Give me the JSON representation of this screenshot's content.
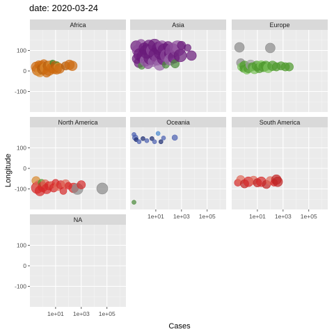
{
  "chart_data": {
    "type": "scatter",
    "title": "date: 2020-03-24",
    "xlabel": "Cases",
    "ylabel": "Longitude",
    "x_scale": "log10",
    "xlim": [
      0.1,
      3000000
    ],
    "ylim": [
      -200,
      200
    ],
    "x_ticks": [
      10,
      1000,
      100000
    ],
    "x_tick_labels": [
      "1e+01",
      "1e+03",
      "1e+05"
    ],
    "y_ticks": [
      100,
      0,
      -100
    ],
    "y_tick_labels": [
      "100",
      "0",
      "-100"
    ],
    "grid": true,
    "legend": "none",
    "colors": {
      "panel_bg": "#ebebeb",
      "strip_bg": "#d9d9d9",
      "grid_major": "#ffffff",
      "africa_orange": "#cc6a10",
      "africa_green": "#3a8a2a",
      "asia_purple": "#6a1b7a",
      "asia_green": "#4a8a3a",
      "europe_green": "#4e9a2e",
      "europe_gray": "#8a8a8a",
      "na_red": "#d62a2a",
      "na_gray": "#8a8a8a",
      "oceania_blue": "#4a5fb0",
      "sa_red": "#c02525"
    },
    "panels": [
      {
        "name": "Africa",
        "points": [
          {
            "x": 0.3,
            "y": 20,
            "size": 7,
            "color": "#cc6a10"
          },
          {
            "x": 0.4,
            "y": 5,
            "size": 8,
            "color": "#cc6a10"
          },
          {
            "x": 0.5,
            "y": 30,
            "size": 6,
            "color": "#cc6a10"
          },
          {
            "x": 0.6,
            "y": -5,
            "size": 7,
            "color": "#d98a30"
          },
          {
            "x": 0.8,
            "y": 25,
            "size": 7,
            "color": "#cc6a10"
          },
          {
            "x": 1,
            "y": 10,
            "size": 8,
            "color": "#b85e0c"
          },
          {
            "x": 1.2,
            "y": 35,
            "size": 6,
            "color": "#cc6a10"
          },
          {
            "x": 1.5,
            "y": 15,
            "size": 7,
            "color": "#d98a30"
          },
          {
            "x": 2,
            "y": -10,
            "size": 6,
            "color": "#cc6a10"
          },
          {
            "x": 2.5,
            "y": 25,
            "size": 7,
            "color": "#b85e0c"
          },
          {
            "x": 3,
            "y": 5,
            "size": 8,
            "color": "#cc6a10"
          },
          {
            "x": 4,
            "y": 30,
            "size": 6,
            "color": "#d98a30"
          },
          {
            "x": 5,
            "y": 15,
            "size": 7,
            "color": "#cc6a10"
          },
          {
            "x": 6,
            "y": 40,
            "size": 4,
            "color": "#3a8a2a"
          },
          {
            "x": 7,
            "y": 10,
            "size": 7,
            "color": "#cc6a10"
          },
          {
            "x": 9,
            "y": 28,
            "size": 6,
            "color": "#b85e0c"
          },
          {
            "x": 12,
            "y": 8,
            "size": 7,
            "color": "#cc6a10"
          },
          {
            "x": 14,
            "y": 35,
            "size": 3,
            "color": "#3a8a2a"
          },
          {
            "x": 16,
            "y": 20,
            "size": 6,
            "color": "#d98a30"
          },
          {
            "x": 20,
            "y": 12,
            "size": 7,
            "color": "#cc6a10"
          },
          {
            "x": 60,
            "y": 25,
            "size": 6,
            "color": "#b85e0c"
          },
          {
            "x": 120,
            "y": 30,
            "size": 7,
            "color": "#cc6a10"
          },
          {
            "x": 200,
            "y": 25,
            "size": 7,
            "color": "#cc6a10"
          }
        ]
      },
      {
        "name": "Asia",
        "points": [
          {
            "x": 0.3,
            "y": 120,
            "size": 8,
            "color": "#6a1b7a"
          },
          {
            "x": 0.35,
            "y": 60,
            "size": 7,
            "color": "#6a1b7a"
          },
          {
            "x": 0.4,
            "y": 100,
            "size": 8,
            "color": "#8b4a9a"
          },
          {
            "x": 0.5,
            "y": 40,
            "size": 7,
            "color": "#6a1b7a"
          },
          {
            "x": 0.6,
            "y": 80,
            "size": 9,
            "color": "#6a1b7a"
          },
          {
            "x": 0.7,
            "y": 130,
            "size": 7,
            "color": "#8b4a9a"
          },
          {
            "x": 0.8,
            "y": 25,
            "size": 5,
            "color": "#4a8a3a"
          },
          {
            "x": 1,
            "y": 70,
            "size": 9,
            "color": "#6a1b7a"
          },
          {
            "x": 1.3,
            "y": 110,
            "size": 8,
            "color": "#6a1b7a"
          },
          {
            "x": 1.6,
            "y": 50,
            "size": 8,
            "color": "#9b6aab"
          },
          {
            "x": 2,
            "y": 95,
            "size": 10,
            "color": "#6a1b7a"
          },
          {
            "x": 2.5,
            "y": 35,
            "size": 7,
            "color": "#8b4a9a"
          },
          {
            "x": 3,
            "y": 120,
            "size": 9,
            "color": "#6a1b7a"
          },
          {
            "x": 4,
            "y": 65,
            "size": 10,
            "color": "#6a1b7a"
          },
          {
            "x": 5,
            "y": 100,
            "size": 8,
            "color": "#8b4a9a"
          },
          {
            "x": 6,
            "y": 45,
            "size": 7,
            "color": "#9b6aab"
          },
          {
            "x": 8,
            "y": 125,
            "size": 9,
            "color": "#6a1b7a"
          },
          {
            "x": 10,
            "y": 80,
            "size": 10,
            "color": "#6a1b7a"
          },
          {
            "x": 13,
            "y": 55,
            "size": 8,
            "color": "#8b4a9a"
          },
          {
            "x": 16,
            "y": 110,
            "size": 9,
            "color": "#6a1b7a"
          },
          {
            "x": 20,
            "y": 30,
            "size": 8,
            "color": "#9b6aab"
          },
          {
            "x": 25,
            "y": 90,
            "size": 10,
            "color": "#6a1b7a"
          },
          {
            "x": 30,
            "y": 120,
            "size": 8,
            "color": "#8b4a9a"
          },
          {
            "x": 40,
            "y": 60,
            "size": 9,
            "color": "#6a1b7a"
          },
          {
            "x": 50,
            "y": 100,
            "size": 10,
            "color": "#6a1b7a"
          },
          {
            "x": 60,
            "y": 30,
            "size": 5,
            "color": "#4a8a3a"
          },
          {
            "x": 70,
            "y": 75,
            "size": 9,
            "color": "#8b4a9a"
          },
          {
            "x": 90,
            "y": 120,
            "size": 7,
            "color": "#6a1b7a"
          },
          {
            "x": 110,
            "y": 85,
            "size": 7,
            "color": "#6a1b7a"
          },
          {
            "x": 130,
            "y": 55,
            "size": 8,
            "color": "#9b6aab"
          },
          {
            "x": 200,
            "y": 100,
            "size": 10,
            "color": "#8b4a9a"
          },
          {
            "x": 250,
            "y": 65,
            "size": 8,
            "color": "#6a1b7a"
          },
          {
            "x": 320,
            "y": 35,
            "size": 6,
            "color": "#4a8a3a"
          },
          {
            "x": 500,
            "y": 110,
            "size": 11,
            "color": "#8b4a9a"
          },
          {
            "x": 800,
            "y": 75,
            "size": 9,
            "color": "#6a1b7a"
          },
          {
            "x": 1000,
            "y": 125,
            "size": 6,
            "color": "#6a1b7a"
          },
          {
            "x": 3000,
            "y": 113,
            "size": 5,
            "color": "#6a1b7a"
          },
          {
            "x": 6000,
            "y": 75,
            "size": 7,
            "color": "#6a1b7a"
          }
        ]
      },
      {
        "name": "Europe",
        "points": [
          {
            "x": 0.4,
            "y": 115,
            "size": 7,
            "color": "#8a8a8a"
          },
          {
            "x": 0.5,
            "y": 40,
            "size": 6,
            "color": "#8a8a8a"
          },
          {
            "x": 0.6,
            "y": 20,
            "size": 6,
            "color": "#7ac25a"
          },
          {
            "x": 0.8,
            "y": 10,
            "size": 5,
            "color": "#4e9a2e"
          },
          {
            "x": 1,
            "y": 25,
            "size": 7,
            "color": "#4e9a2e"
          },
          {
            "x": 1.5,
            "y": 5,
            "size": 6,
            "color": "#7ac25a"
          },
          {
            "x": 2,
            "y": 15,
            "size": 7,
            "color": "#4e9a2e"
          },
          {
            "x": 3,
            "y": 30,
            "size": 7,
            "color": "#a0a0a0"
          },
          {
            "x": 4,
            "y": 20,
            "size": 6,
            "color": "#4e9a2e"
          },
          {
            "x": 6,
            "y": 10,
            "size": 7,
            "color": "#7ac25a"
          },
          {
            "x": 9,
            "y": 25,
            "size": 7,
            "color": "#4e9a2e"
          },
          {
            "x": 14,
            "y": 15,
            "size": 7,
            "color": "#4e9a2e"
          },
          {
            "x": 20,
            "y": 30,
            "size": 6,
            "color": "#7ac25a"
          },
          {
            "x": 30,
            "y": 20,
            "size": 7,
            "color": "#4e9a2e"
          },
          {
            "x": 45,
            "y": 25,
            "size": 7,
            "color": "#4e9a2e"
          },
          {
            "x": 70,
            "y": 15,
            "size": 7,
            "color": "#7ac25a"
          },
          {
            "x": 100,
            "y": 112,
            "size": 7,
            "color": "#8a8a8a"
          },
          {
            "x": 150,
            "y": 25,
            "size": 7,
            "color": "#4e9a2e"
          },
          {
            "x": 300,
            "y": 20,
            "size": 6,
            "color": "#4e9a2e"
          },
          {
            "x": 700,
            "y": 25,
            "size": 6,
            "color": "#4e9a2e"
          },
          {
            "x": 1500,
            "y": 20,
            "size": 6,
            "color": "#4e9a2e"
          },
          {
            "x": 3000,
            "y": 20,
            "size": 6,
            "color": "#4e9a2e"
          }
        ]
      },
      {
        "name": "North America",
        "points": [
          {
            "x": 0.3,
            "y": -60,
            "size": 6,
            "color": "#d98a30"
          },
          {
            "x": 0.35,
            "y": -95,
            "size": 8,
            "color": "#d62a2a"
          },
          {
            "x": 0.45,
            "y": -80,
            "size": 6,
            "color": "#e06a5a"
          },
          {
            "x": 0.6,
            "y": -110,
            "size": 7,
            "color": "#d62a2a"
          },
          {
            "x": 0.8,
            "y": -70,
            "size": 5,
            "color": "#4e9a2e"
          },
          {
            "x": 1,
            "y": -90,
            "size": 7,
            "color": "#d62a2a"
          },
          {
            "x": 1.5,
            "y": -75,
            "size": 6,
            "color": "#e06a5a"
          },
          {
            "x": 2,
            "y": -100,
            "size": 7,
            "color": "#d62a2a"
          },
          {
            "x": 3,
            "y": -85,
            "size": 6,
            "color": "#d62a2a"
          },
          {
            "x": 5,
            "y": -80,
            "size": 5,
            "color": "#e06a5a"
          },
          {
            "x": 7,
            "y": -95,
            "size": 6,
            "color": "#d62a2a"
          },
          {
            "x": 10,
            "y": -70,
            "size": 5,
            "color": "#d62a2a"
          },
          {
            "x": 15,
            "y": -88,
            "size": 6,
            "color": "#e06a5a"
          },
          {
            "x": 25,
            "y": -80,
            "size": 6,
            "color": "#d62a2a"
          },
          {
            "x": 40,
            "y": -110,
            "size": 5,
            "color": "#d62a2a"
          },
          {
            "x": 60,
            "y": -75,
            "size": 6,
            "color": "#e06a5a"
          },
          {
            "x": 100,
            "y": -85,
            "size": 5,
            "color": "#d62a2a"
          },
          {
            "x": 250,
            "y": -95,
            "size": 7,
            "color": "#d62a2a"
          },
          {
            "x": 500,
            "y": -100,
            "size": 8,
            "color": "#8a8a8a"
          },
          {
            "x": 1000,
            "y": -80,
            "size": 6,
            "color": "#d62a2a"
          },
          {
            "x": 43000,
            "y": -98,
            "size": 8,
            "color": "#8a8a8a"
          }
        ]
      },
      {
        "name": "Oceania",
        "points": [
          {
            "x": 0.2,
            "y": 165,
            "size": 3,
            "color": "#4a5fb0"
          },
          {
            "x": 0.25,
            "y": 150,
            "size": 4,
            "color": "#4a5fb0"
          },
          {
            "x": 0.3,
            "y": 140,
            "size": 3,
            "color": "#1a2a70"
          },
          {
            "x": 0.5,
            "y": 130,
            "size": 3,
            "color": "#4a5fb0"
          },
          {
            "x": 1,
            "y": 145,
            "size": 3,
            "color": "#1a2a70"
          },
          {
            "x": 2,
            "y": 135,
            "size": 3,
            "color": "#4a5fb0"
          },
          {
            "x": 5,
            "y": 145,
            "size": 3,
            "color": "#1a2a70"
          },
          {
            "x": 8,
            "y": 130,
            "size": 3,
            "color": "#4a5fb0"
          },
          {
            "x": 15,
            "y": 170,
            "size": 3,
            "color": "#4a8ad0"
          },
          {
            "x": 25,
            "y": 130,
            "size": 3,
            "color": "#1a2a70"
          },
          {
            "x": 40,
            "y": 148,
            "size": 3,
            "color": "#4a5fb0"
          },
          {
            "x": 300,
            "y": 150,
            "size": 4,
            "color": "#4a5fb0"
          },
          {
            "x": 0.2,
            "y": -165,
            "size": 3,
            "color": "#4a8a3a"
          }
        ]
      },
      {
        "name": "South America",
        "points": [
          {
            "x": 0.3,
            "y": -70,
            "size": 5,
            "color": "#d62a2a"
          },
          {
            "x": 0.5,
            "y": -55,
            "size": 6,
            "color": "#e06a5a"
          },
          {
            "x": 1,
            "y": -75,
            "size": 6,
            "color": "#c02525"
          },
          {
            "x": 2,
            "y": -65,
            "size": 7,
            "color": "#d62a2a"
          },
          {
            "x": 5,
            "y": -58,
            "size": 6,
            "color": "#e06a5a"
          },
          {
            "x": 10,
            "y": -70,
            "size": 6,
            "color": "#c02525"
          },
          {
            "x": 20,
            "y": -65,
            "size": 7,
            "color": "#d62a2a"
          },
          {
            "x": 50,
            "y": -78,
            "size": 6,
            "color": "#c02525"
          },
          {
            "x": 100,
            "y": -60,
            "size": 6,
            "color": "#e06a5a"
          },
          {
            "x": 200,
            "y": -70,
            "size": 5,
            "color": "#d62a2a"
          },
          {
            "x": 300,
            "y": -55,
            "size": 7,
            "color": "#c02525"
          },
          {
            "x": 380,
            "y": -65,
            "size": 7,
            "color": "#c02525"
          }
        ]
      },
      {
        "name": "NA",
        "points": []
      }
    ]
  }
}
